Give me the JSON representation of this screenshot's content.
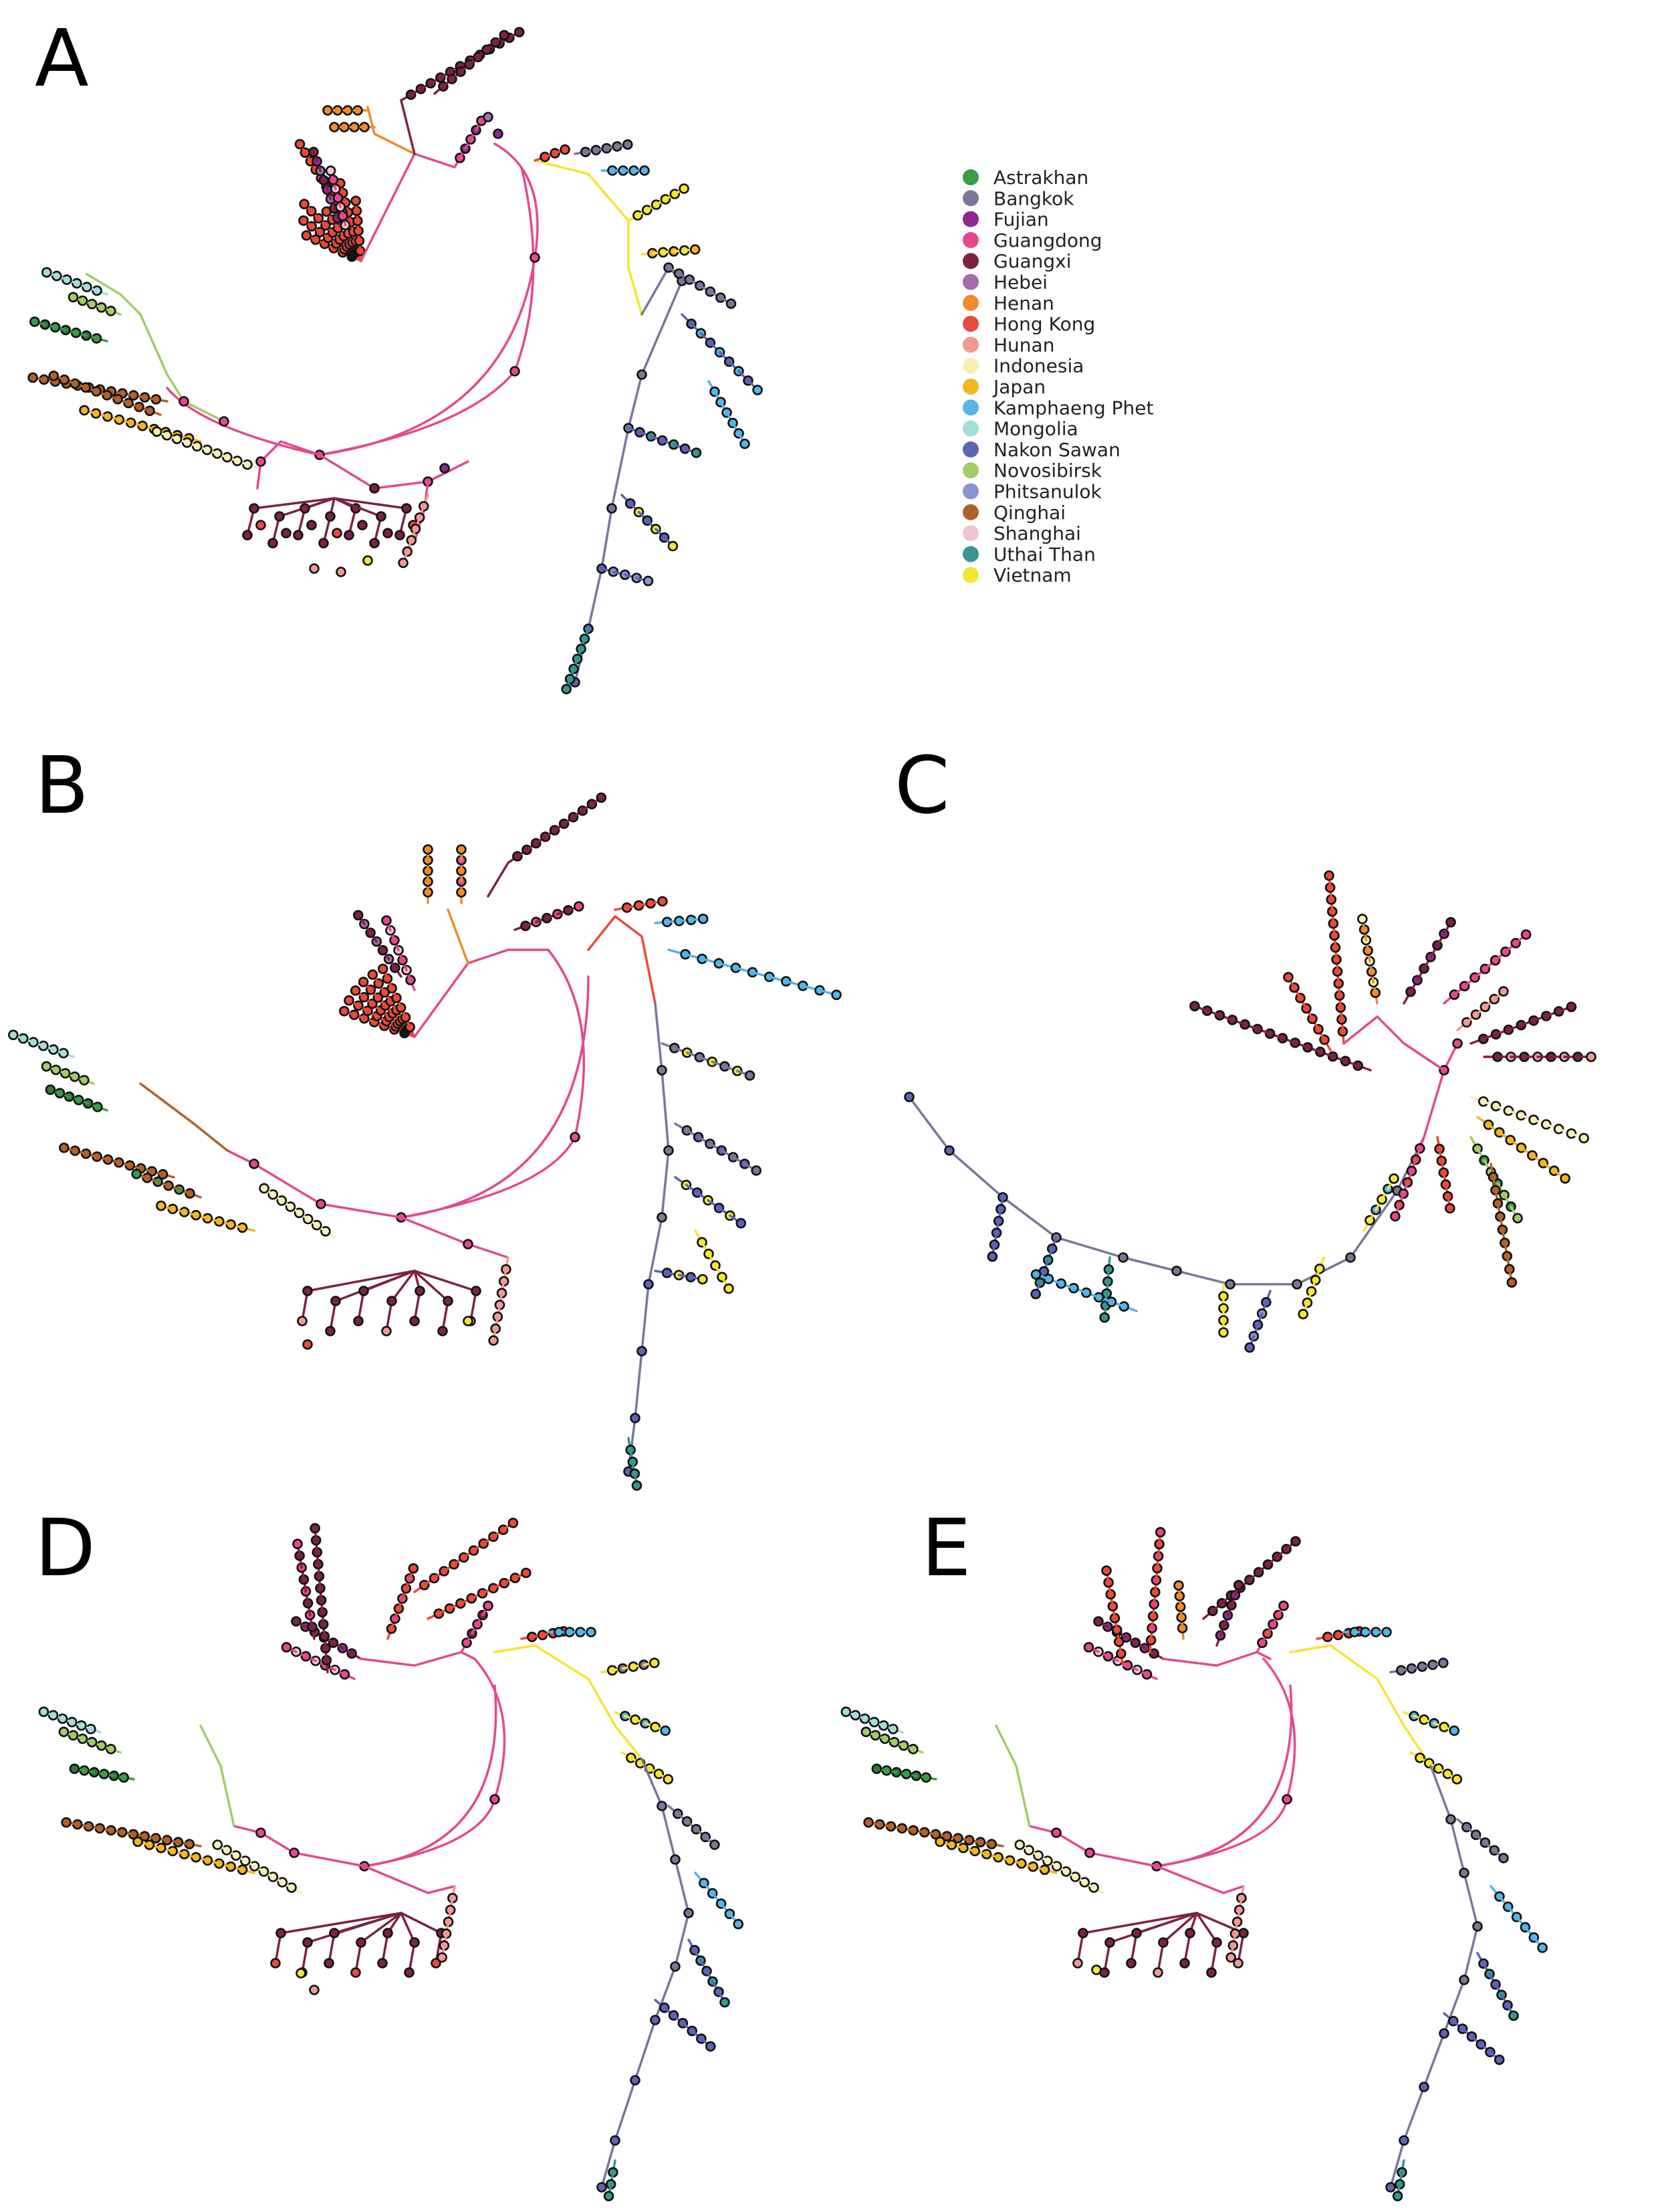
{
  "figure": {
    "panels": [
      {
        "id": "A",
        "label": "A"
      },
      {
        "id": "B",
        "label": "B"
      },
      {
        "id": "C",
        "label": "C"
      },
      {
        "id": "D",
        "label": "D"
      },
      {
        "id": "E",
        "label": "E"
      }
    ],
    "legend": [
      {
        "name": "Astrakhan",
        "color": "#3a9b4a"
      },
      {
        "name": "Bangkok",
        "color": "#7a7898"
      },
      {
        "name": "Fujian",
        "color": "#8e2a8e"
      },
      {
        "name": "Guangdong",
        "color": "#e34a8e"
      },
      {
        "name": "Guangxi",
        "color": "#7a2444"
      },
      {
        "name": "Hebei",
        "color": "#a66ab0"
      },
      {
        "name": "Henan",
        "color": "#ee8c2e"
      },
      {
        "name": "Hong Kong",
        "color": "#e84a3c"
      },
      {
        "name": "Hunan",
        "color": "#ef9a94"
      },
      {
        "name": "Indonesia",
        "color": "#f4f0b8"
      },
      {
        "name": "Japan",
        "color": "#f2b624"
      },
      {
        "name": "Kamphaeng Phet",
        "color": "#56b4e6"
      },
      {
        "name": "Mongolia",
        "color": "#a6dcd6"
      },
      {
        "name": "Nakon Sawan",
        "color": "#5e64b4"
      },
      {
        "name": "Novosibirsk",
        "color": "#a2cc6a"
      },
      {
        "name": "Phitsanulok",
        "color": "#8a94d2"
      },
      {
        "name": "Qinghai",
        "color": "#b0622a"
      },
      {
        "name": "Shanghai",
        "color": "#f2c4d2"
      },
      {
        "name": "Uthai Than",
        "color": "#36968e"
      },
      {
        "name": "Vietnam",
        "color": "#f4e634"
      }
    ]
  }
}
